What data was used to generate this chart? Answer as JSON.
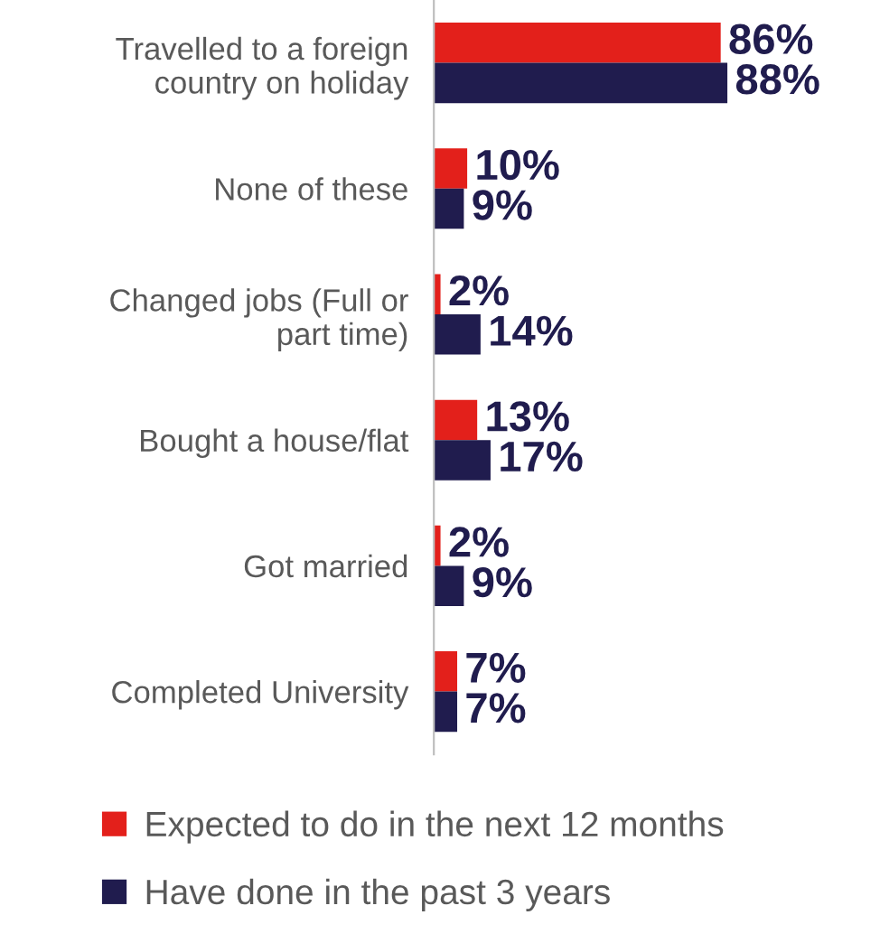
{
  "chart_data": {
    "type": "bar",
    "orientation": "horizontal",
    "legend": "bottom",
    "grid": false,
    "categories": [
      "Travelled to a foreign\ncountry on holiday",
      "None of these",
      "Changed jobs (Full or\npart time)",
      "Bought a house/flat",
      "Got married",
      "Completed University"
    ],
    "series": [
      {
        "name": "Expected to do in the next 12 months",
        "color": "#e3201b",
        "values": [
          86,
          10,
          2,
          13,
          2,
          7
        ],
        "value_labels": [
          "86%",
          "10%",
          "2%",
          "13%",
          "2%",
          "7%"
        ]
      },
      {
        "name": "Have done in the past 3 years",
        "color": "#201c4e",
        "values": [
          88,
          9,
          14,
          17,
          9,
          7
        ],
        "value_labels": [
          "88%",
          "9%",
          "14%",
          "17%",
          "9%",
          "7%"
        ]
      }
    ]
  }
}
